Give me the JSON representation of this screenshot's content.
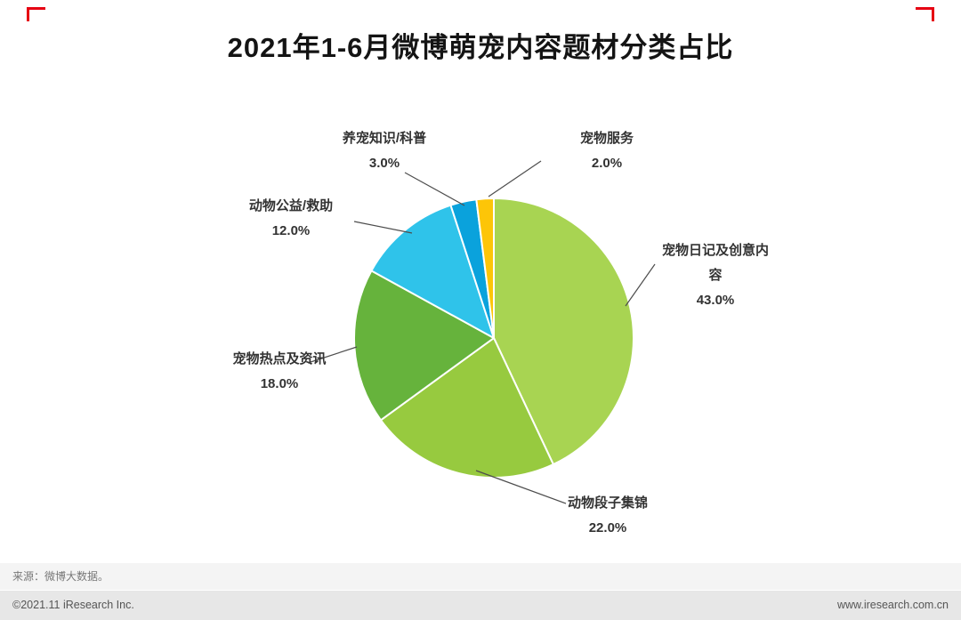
{
  "title": "2021年1-6月微博萌宠内容题材分类占比",
  "chart_data": {
    "type": "pie",
    "title": "2021年1-6月微博萌宠内容题材分类占比",
    "unit": "%",
    "direction": "clockwise",
    "start_angle_deg": 0,
    "legend": "none",
    "slices": [
      {
        "name": "宠物日记及创意内容",
        "value": 43.0,
        "pct_label": "43.0%",
        "color": "#a8d452"
      },
      {
        "name": "动物段子集锦",
        "value": 22.0,
        "pct_label": "22.0%",
        "color": "#97ca3f"
      },
      {
        "name": "宠物热点及资讯",
        "value": 18.0,
        "pct_label": "18.0%",
        "color": "#66b33c"
      },
      {
        "name": "动物公益/救助",
        "value": 12.0,
        "pct_label": "12.0%",
        "color": "#2fc3ea"
      },
      {
        "name": "养宠知识/科普",
        "value": 3.0,
        "pct_label": "3.0%",
        "color": "#0aa2dc"
      },
      {
        "name": "宠物服务",
        "value": 2.0,
        "pct_label": "2.0%",
        "color": "#fdc508"
      }
    ]
  },
  "footer": {
    "source": "来源：微博大数据。",
    "copyright": "©2021.11 iResearch Inc.",
    "website": "www.iresearch.com.cn"
  },
  "accent_color": "#e60012"
}
